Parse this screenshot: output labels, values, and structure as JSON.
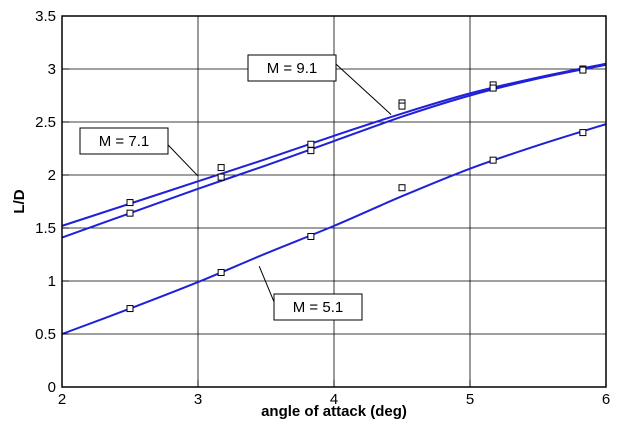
{
  "chart_data": {
    "type": "line",
    "title": "",
    "xlabel": "angle of attack (deg)",
    "ylabel": "L/D",
    "xlim": [
      2,
      6
    ],
    "ylim": [
      0,
      3.5
    ],
    "xticks": [
      "2",
      "3",
      "4",
      "5",
      "6"
    ],
    "yticks": [
      "0",
      "0.5",
      "1",
      "1.5",
      "2",
      "2.5",
      "3",
      "3.5"
    ],
    "grid": true,
    "line_color": "#2020d8",
    "marker_color": "#000000",
    "series": [
      {
        "name": "M = 5.1",
        "curve": {
          "x": [
            2,
            2.5,
            3,
            3.5,
            4,
            4.5,
            5,
            5.5,
            6
          ],
          "y": [
            0.5,
            0.74,
            0.99,
            1.26,
            1.52,
            1.8,
            2.06,
            2.28,
            2.48
          ]
        },
        "points": {
          "x": [
            2.5,
            3.17,
            3.83,
            4.5,
            5.17,
            5.83
          ],
          "y": [
            0.74,
            1.08,
            1.42,
            1.88,
            2.14,
            2.4
          ]
        }
      },
      {
        "name": "M = 7.1",
        "curve": {
          "x": [
            2,
            2.5,
            3,
            3.5,
            4,
            4.5,
            5,
            5.5,
            6
          ],
          "y": [
            1.52,
            1.73,
            1.94,
            2.15,
            2.37,
            2.58,
            2.77,
            2.92,
            3.05
          ]
        },
        "points": {
          "x": [
            2.5,
            3.17,
            3.83,
            4.5,
            5.17,
            5.83
          ],
          "y": [
            1.74,
            2.07,
            2.29,
            2.68,
            2.85,
            3.0
          ]
        }
      },
      {
        "name": "M = 9.1",
        "curve": {
          "x": [
            2,
            2.5,
            3,
            3.5,
            4,
            4.5,
            5,
            5.5,
            6
          ],
          "y": [
            1.41,
            1.64,
            1.87,
            2.09,
            2.32,
            2.55,
            2.75,
            2.91,
            3.04
          ]
        },
        "points": {
          "x": [
            2.5,
            3.17,
            3.83,
            4.5,
            5.17,
            5.83
          ],
          "y": [
            1.64,
            1.98,
            2.23,
            2.65,
            2.82,
            2.99
          ]
        }
      }
    ],
    "annotations": [
      {
        "text": "M = 9.1",
        "series": 2,
        "point_x": 4.42,
        "point_y": 2.57
      },
      {
        "text": "M = 7.1",
        "series": 1,
        "point_x": 3.0,
        "point_y": 1.99
      },
      {
        "text": "M = 5.1",
        "series": 0,
        "point_x": 3.45,
        "point_y": 1.14
      }
    ]
  }
}
